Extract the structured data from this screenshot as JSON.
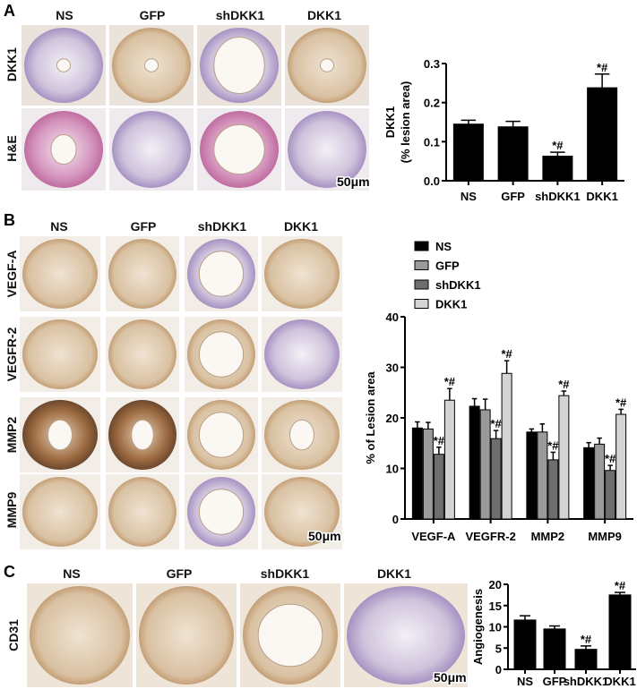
{
  "panels": {
    "A": {
      "letter": "A",
      "columns": [
        "NS",
        "GFP",
        "shDKK1",
        "DKK1"
      ],
      "rows": [
        "DKK1",
        "H&E"
      ],
      "scale_bar": "50μm"
    },
    "B": {
      "letter": "B",
      "columns": [
        "NS",
        "GFP",
        "shDKK1",
        "DKK1"
      ],
      "rows": [
        "VEGF-A",
        "VEGFR-2",
        "MMP2",
        "MMP9"
      ],
      "scale_bar": "50μm"
    },
    "C": {
      "letter": "C",
      "columns": [
        "NS",
        "GFP",
        "shDKK1",
        "DKK1"
      ],
      "rows": [
        "CD31"
      ],
      "scale_bar": "50μm"
    }
  },
  "colors": {
    "stain_brown": "#b98a5a",
    "stain_purple": "#8a6fb0",
    "he_pink": "#c0609a",
    "bar_black": "#000000"
  },
  "chart_data": [
    {
      "type": "bar",
      "panel": "A",
      "categories": [
        "NS",
        "GFP",
        "shDKK1",
        "DKK1"
      ],
      "values": [
        0.145,
        0.138,
        0.063,
        0.238
      ],
      "errors": [
        0.01,
        0.014,
        0.01,
        0.035
      ],
      "annotations": [
        "",
        "",
        "*#",
        "*#"
      ],
      "ylabel": [
        "DKK1",
        "(% lesion area)"
      ],
      "ylim": [
        0,
        0.3
      ],
      "yticks": [
        "0.0",
        "0.1",
        "0.2",
        "0.3"
      ],
      "colors": [
        "#000000"
      ]
    },
    {
      "type": "bar",
      "panel": "B",
      "categories": [
        "VEGF-A",
        "VEGFR-2",
        "MMP2",
        "MMP9"
      ],
      "series": [
        {
          "name": "NS",
          "values": [
            18.0,
            22.3,
            17.2,
            14.1
          ],
          "errors": [
            1.2,
            1.5,
            0.6,
            1.0
          ],
          "color": "#000000",
          "annotations": [
            "",
            "",
            "",
            ""
          ]
        },
        {
          "name": "GFP",
          "values": [
            17.8,
            21.6,
            17.2,
            14.8
          ],
          "errors": [
            1.3,
            2.1,
            1.6,
            1.2
          ],
          "color": "#9a9a9a",
          "annotations": [
            "",
            "",
            "",
            ""
          ]
        },
        {
          "name": "shDKK1",
          "values": [
            12.8,
            15.9,
            11.7,
            9.6
          ],
          "errors": [
            1.4,
            1.6,
            1.5,
            1.0
          ],
          "color": "#6e6e6e",
          "annotations": [
            "*#",
            "*#",
            "*#",
            "*#"
          ]
        },
        {
          "name": "DKK1",
          "values": [
            23.5,
            28.8,
            24.4,
            20.7
          ],
          "errors": [
            2.3,
            2.5,
            0.9,
            1.0
          ],
          "color": "#d4d4d4",
          "annotations": [
            "*#",
            "*#",
            "*#",
            "*#"
          ]
        }
      ],
      "ylabel": "% of Lesion area",
      "ylim": [
        0,
        40
      ],
      "yticks": [
        "0",
        "10",
        "20",
        "30",
        "40"
      ],
      "legend": "top-left"
    },
    {
      "type": "bar",
      "panel": "C",
      "categories": [
        "NS",
        "GFP",
        "shDKK1",
        "DKK1"
      ],
      "values": [
        11.6,
        9.5,
        4.7,
        17.5
      ],
      "errors": [
        1.0,
        0.7,
        0.8,
        0.6
      ],
      "annotations": [
        "",
        "",
        "*#",
        "*#"
      ],
      "ylabel": "Angiogenesis",
      "ylim": [
        0,
        20
      ],
      "yticks": [
        "0",
        "5",
        "10",
        "15",
        "20"
      ],
      "colors": [
        "#000000"
      ]
    }
  ]
}
